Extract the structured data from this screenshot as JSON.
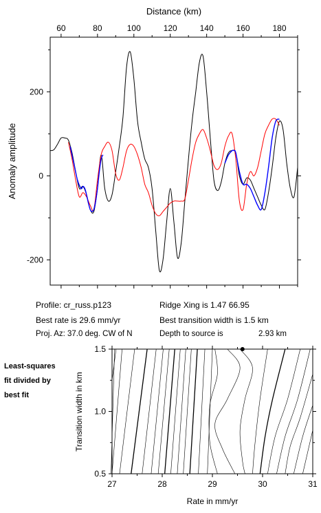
{
  "chart_data": [
    {
      "type": "line",
      "title": "",
      "xlabel": "Distance (km)",
      "ylabel": "Anomaly amplitude",
      "xlim": [
        54,
        190
      ],
      "ylim": [
        -260,
        330
      ],
      "x_ticks": [
        60,
        80,
        100,
        120,
        140,
        160,
        180
      ],
      "x_tick_labels": [
        "60",
        "80",
        "100",
        "120",
        "140",
        "160",
        "180"
      ],
      "y_ticks": [
        -200,
        0,
        200
      ],
      "y_tick_labels": [
        "-200",
        "0",
        "200"
      ],
      "grid": false,
      "legend": "none",
      "series": [
        {
          "color": "#000000",
          "x": [
            54,
            56,
            58,
            60,
            62,
            64,
            66,
            68,
            70,
            72,
            74,
            76,
            78,
            80,
            82,
            84,
            86,
            88,
            90,
            92,
            94,
            96,
            98,
            100,
            102,
            104,
            106,
            108,
            110,
            112,
            114,
            116,
            118,
            120,
            122,
            124,
            126,
            128,
            130,
            132,
            134,
            136,
            138,
            140,
            142,
            144,
            146,
            148,
            150,
            152,
            154,
            156,
            158,
            160,
            162,
            164,
            166,
            168,
            170,
            172,
            174,
            176,
            178,
            180,
            182,
            184,
            186,
            188,
            190
          ],
          "y": [
            60,
            62,
            75,
            90,
            90,
            85,
            55,
            10,
            -30,
            -25,
            -45,
            -80,
            -85,
            -30,
            50,
            -30,
            -60,
            -45,
            10,
            70,
            140,
            260,
            295,
            230,
            130,
            80,
            40,
            20,
            -30,
            -130,
            -225,
            -200,
            -110,
            -30,
            -110,
            -195,
            -160,
            -60,
            40,
            130,
            200,
            270,
            285,
            200,
            90,
            -10,
            -35,
            -15,
            30,
            55,
            60,
            55,
            0,
            -20,
            -5,
            -10,
            -30,
            -50,
            -70,
            -80,
            -40,
            20,
            90,
            130,
            110,
            30,
            -30,
            -50,
            20
          ]
        },
        {
          "color": "#ff0000",
          "x": [
            64,
            66,
            68,
            70,
            72,
            74,
            76,
            78,
            80,
            82,
            84,
            86,
            88,
            90,
            92,
            94,
            96,
            98,
            100,
            102,
            104,
            106,
            108,
            110,
            112,
            114,
            116,
            118,
            120,
            122,
            124,
            126,
            128,
            130,
            132,
            134,
            136,
            138,
            140,
            142,
            144,
            146,
            148,
            150,
            152,
            154,
            156,
            158,
            160,
            162,
            164,
            166,
            168,
            170,
            172,
            174,
            176,
            178,
            180
          ],
          "y": [
            80,
            40,
            -10,
            -50,
            -40,
            -50,
            -70,
            -80,
            -10,
            50,
            70,
            80,
            60,
            5,
            -10,
            20,
            60,
            75,
            70,
            50,
            20,
            -20,
            -40,
            -70,
            -90,
            -95,
            -85,
            -75,
            -65,
            -60,
            -60,
            -60,
            -55,
            -10,
            40,
            80,
            100,
            110,
            90,
            60,
            25,
            15,
            30,
            70,
            95,
            100,
            40,
            -60,
            -80,
            -20,
            10,
            0,
            20,
            60,
            100,
            120,
            135,
            135,
            120
          ]
        },
        {
          "color": "#0000ff",
          "x": [
            65,
            67,
            69,
            71,
            72,
            73,
            74,
            75,
            76,
            77,
            78,
            79,
            80,
            81,
            82,
            83
          ],
          "y": [
            70,
            30,
            -10,
            -30,
            -25,
            -30,
            -45,
            -65,
            -80,
            -85,
            -80,
            -60,
            -30,
            10,
            40,
            50
          ]
        },
        {
          "color": "#0000ff",
          "x": [
            150,
            152,
            154,
            155,
            156,
            158,
            160,
            162,
            164,
            166,
            168,
            170,
            172,
            174,
            176,
            178,
            180
          ],
          "y": [
            30,
            50,
            60,
            60,
            55,
            10,
            -20,
            -20,
            -30,
            -50,
            -70,
            -80,
            -40,
            20,
            90,
            130,
            135
          ]
        }
      ]
    },
    {
      "type": "contour",
      "title": "Least-squares fit divided by best fit",
      "xlabel": "Rate in mm/yr",
      "ylabel": "Transition width in km",
      "xlim": [
        27,
        31
      ],
      "ylim": [
        0.5,
        1.5
      ],
      "x_ticks": [
        27,
        28,
        29,
        30,
        31
      ],
      "x_tick_labels": [
        "27",
        "28",
        "29",
        "30",
        "31"
      ],
      "y_ticks": [
        0.5,
        1.0,
        1.5
      ],
      "y_tick_labels": [
        "0.5",
        "1.0",
        "1.5"
      ],
      "best_fit_point": {
        "x": 29.6,
        "y": 1.5
      },
      "grid": false,
      "legend": "none"
    }
  ],
  "info": {
    "profile": "Profile: cr_russ.p123",
    "best_rate": "Best rate is 29.6 mm/yr",
    "proj_az": "Proj. Az: 37.0 deg. CW of N",
    "ridge_xing": "Ridge Xing is 1.47 66.95",
    "best_width": "Best transition width is 1.5 km",
    "depth_label": "Depth to source is",
    "depth_value": "2.93 km"
  },
  "sidebar": {
    "line1": "Least-squares",
    "line2": "fit divided by",
    "line3": "best fit"
  }
}
